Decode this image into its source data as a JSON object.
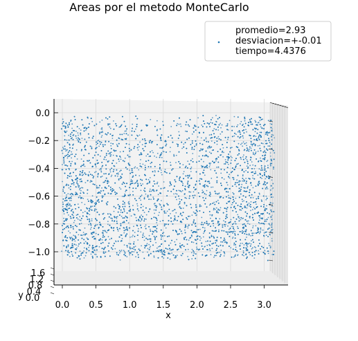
{
  "chart_data": {
    "type": "scatter",
    "projection": "3d",
    "title": "Areas por el metodo MonteCarlo",
    "xlabel": "x",
    "ylabel": "y",
    "zlabel": "",
    "xlim": [
      -0.1,
      3.25
    ],
    "zlim": [
      -1.12,
      0.05
    ],
    "x_ticks": [
      "0.0",
      "0.5",
      "1.0",
      "1.5",
      "2.0",
      "2.5",
      "3.0"
    ],
    "x_tick_values": [
      0.0,
      0.5,
      1.0,
      1.5,
      2.0,
      2.5,
      3.0
    ],
    "z_ticks": [
      "0.0",
      "−0.2",
      "−0.4",
      "−0.6",
      "−0.8",
      "−1.0"
    ],
    "z_tick_values": [
      0.0,
      -0.2,
      -0.4,
      -0.6,
      -0.8,
      -1.0
    ],
    "y_ticks": [
      "0.0",
      "0.4",
      "0.8",
      "1.2",
      "1.6"
    ],
    "point_color": "#1f77b4",
    "point_count_approx": 14000,
    "x_range": [
      0.0,
      3.14159
    ],
    "z_range": [
      -1.0,
      0.0
    ],
    "pattern": "points fill region z between -1 and 0; density highest near x=0 and x=pi, sparse near top center",
    "legend": {
      "position": "upper-right",
      "entries": [
        "promedio=2.93",
        "desviacion=+-0.01",
        "tiempo=4.4376"
      ]
    },
    "grid": true
  }
}
